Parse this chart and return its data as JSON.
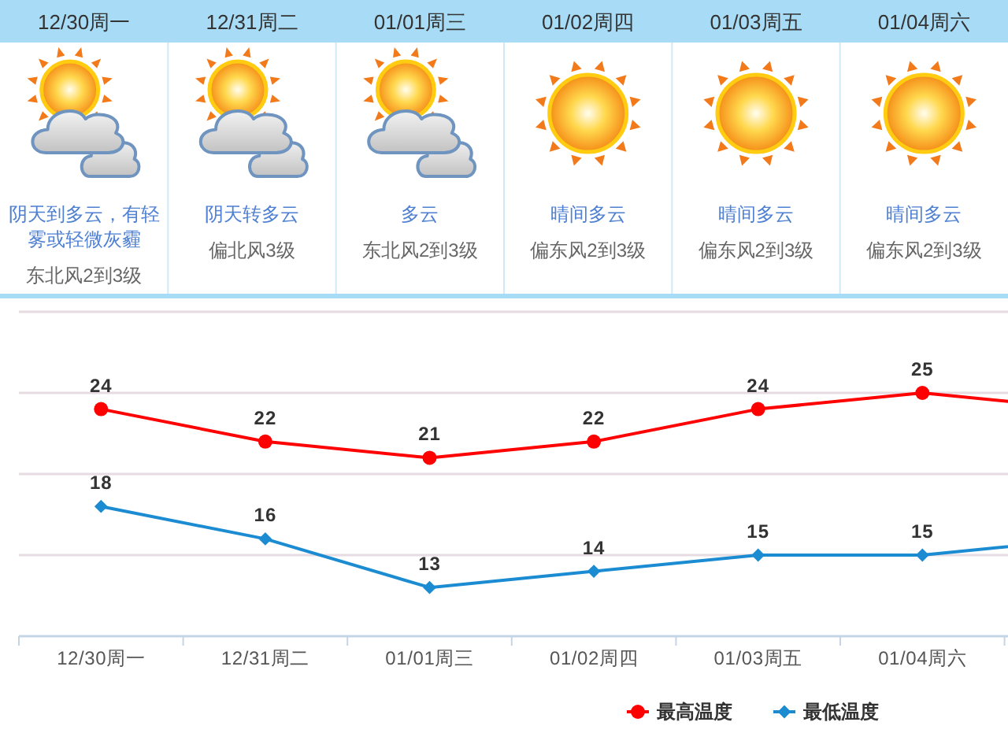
{
  "chart_data": [
    {
      "type": "other",
      "categories": [
        "12/30周一",
        "12/31周二",
        "01/01周三",
        "01/02周四",
        "01/03周五",
        "01/04周六"
      ],
      "annotations": [
        "阴天到多云，有轻雾或轻微灰霾",
        "东北风2到3级",
        "阴天转多云",
        "偏北风3级",
        "多云",
        "东北风2到3级",
        "晴间多云",
        "偏东风2到3级",
        "晴间多云",
        "偏东风2到3级",
        "晴间多云",
        "偏东风2到3级"
      ]
    },
    {
      "type": "line",
      "categories": [
        "12/30周一",
        "12/31周二",
        "01/01周三",
        "01/02周四",
        "01/03周五",
        "01/04周六",
        null
      ],
      "ylim": [
        10,
        30
      ],
      "yticks": [
        {
          "value": 15,
          "label": null
        },
        {
          "value": 20,
          "label": null
        },
        {
          "value": 25,
          "label": null
        },
        {
          "value": 30,
          "label": null
        }
      ],
      "grid": "y",
      "legend": "bottom right",
      "series": [
        {
          "name": "最高温度",
          "color": "#ff0000",
          "marker": "circle",
          "values": [
            24,
            22,
            21,
            22,
            24,
            25,
            24
          ],
          "value_labels": [
            "24",
            "22",
            "21",
            "22",
            "24",
            "25",
            null
          ]
        },
        {
          "name": "最低温度",
          "color": "#1b8bd2",
          "marker": "diamond",
          "values": [
            18,
            16,
            13,
            14,
            15,
            15,
            16
          ],
          "value_labels": [
            "18",
            "16",
            "13",
            "14",
            "15",
            "15",
            null
          ]
        }
      ]
    }
  ]
}
